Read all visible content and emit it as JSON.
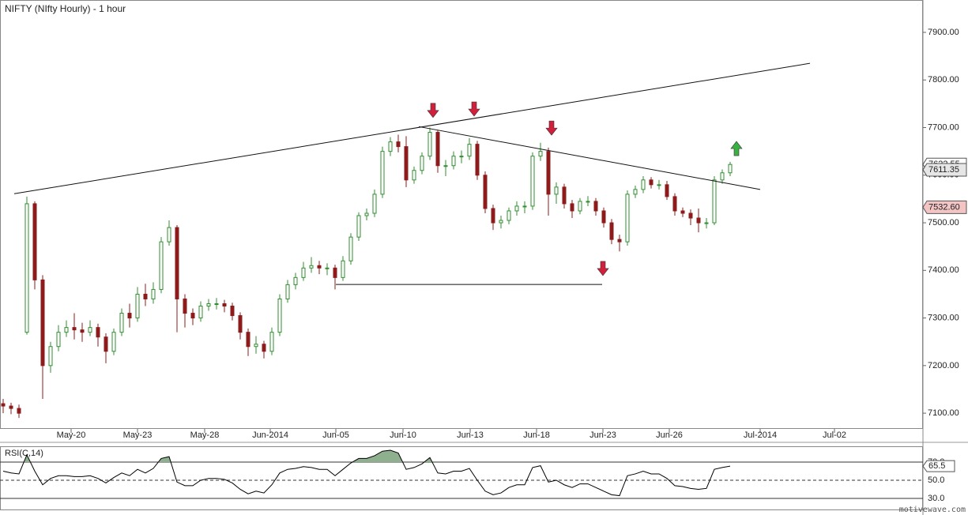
{
  "chart_data": [
    {
      "type": "candlestick",
      "title": "NIFTY (NIfty Hourly) - 1 hour",
      "open": [
        7120,
        7115,
        7110,
        7270,
        7540,
        7380,
        7200,
        7240,
        7270,
        7280,
        7275,
        7270,
        7280,
        7260,
        7230,
        7270,
        7310,
        7300,
        7350,
        7340,
        7360,
        7460,
        7490,
        7340,
        7310,
        7300,
        7325,
        7330,
        7330,
        7325,
        7305,
        7270,
        7240,
        7245,
        7230,
        7270,
        7340,
        7370,
        7385,
        7405,
        7410,
        7405,
        7405,
        7385,
        7420,
        7470,
        7515,
        7520,
        7560,
        7650,
        7670,
        7660,
        7590,
        7610,
        7640,
        7690,
        7620,
        7620,
        7640,
        7640,
        7665,
        7600,
        7530,
        7500,
        7505,
        7525,
        7535,
        7535,
        7640,
        7650,
        7560,
        7575,
        7540,
        7525,
        7545,
        7545,
        7525,
        7500,
        7465,
        7460,
        7560,
        7570,
        7590,
        7580,
        7580,
        7555,
        7525,
        7520,
        7510,
        7500,
        7500,
        7590,
        7605
      ],
      "high": [
        7130,
        7122,
        7118,
        7555,
        7545,
        7390,
        7250,
        7285,
        7295,
        7310,
        7290,
        7295,
        7288,
        7268,
        7278,
        7320,
        7330,
        7365,
        7372,
        7375,
        7470,
        7505,
        7495,
        7350,
        7320,
        7335,
        7340,
        7342,
        7338,
        7332,
        7312,
        7278,
        7262,
        7252,
        7280,
        7350,
        7380,
        7395,
        7418,
        7428,
        7420,
        7415,
        7412,
        7430,
        7478,
        7522,
        7530,
        7570,
        7660,
        7680,
        7685,
        7682,
        7618,
        7648,
        7700,
        7695,
        7632,
        7650,
        7652,
        7678,
        7672,
        7608,
        7538,
        7515,
        7532,
        7545,
        7545,
        7648,
        7668,
        7658,
        7585,
        7582,
        7548,
        7552,
        7556,
        7552,
        7532,
        7508,
        7475,
        7568,
        7578,
        7598,
        7596,
        7590,
        7588,
        7562,
        7532,
        7528,
        7530,
        7510,
        7598,
        7612,
        7628
      ],
      "low": [
        7100,
        7098,
        7090,
        7265,
        7360,
        7130,
        7185,
        7230,
        7260,
        7255,
        7250,
        7262,
        7240,
        7205,
        7222,
        7262,
        7280,
        7292,
        7325,
        7330,
        7352,
        7452,
        7270,
        7280,
        7285,
        7292,
        7315,
        7318,
        7312,
        7295,
        7255,
        7220,
        7225,
        7215,
        7222,
        7262,
        7332,
        7360,
        7378,
        7395,
        7392,
        7390,
        7360,
        7378,
        7412,
        7462,
        7505,
        7512,
        7552,
        7640,
        7648,
        7575,
        7582,
        7602,
        7632,
        7605,
        7598,
        7612,
        7625,
        7632,
        7590,
        7520,
        7485,
        7488,
        7497,
        7515,
        7520,
        7527,
        7630,
        7515,
        7540,
        7530,
        7510,
        7518,
        7535,
        7515,
        7490,
        7455,
        7440,
        7452,
        7552,
        7562,
        7572,
        7570,
        7548,
        7515,
        7512,
        7495,
        7480,
        7488,
        7495,
        7582,
        7598
      ],
      "close": [
        7115,
        7110,
        7100,
        7540,
        7380,
        7200,
        7240,
        7270,
        7280,
        7275,
        7270,
        7280,
        7260,
        7230,
        7270,
        7310,
        7300,
        7350,
        7340,
        7360,
        7460,
        7490,
        7340,
        7310,
        7300,
        7325,
        7330,
        7330,
        7325,
        7305,
        7270,
        7240,
        7245,
        7230,
        7270,
        7340,
        7370,
        7385,
        7405,
        7410,
        7405,
        7405,
        7385,
        7420,
        7470,
        7515,
        7520,
        7560,
        7650,
        7670,
        7660,
        7590,
        7610,
        7640,
        7690,
        7620,
        7620,
        7640,
        7640,
        7665,
        7600,
        7530,
        7500,
        7505,
        7525,
        7535,
        7535,
        7640,
        7650,
        7560,
        7575,
        7540,
        7525,
        7545,
        7545,
        7525,
        7500,
        7465,
        7460,
        7560,
        7570,
        7590,
        7580,
        7580,
        7555,
        7525,
        7520,
        7510,
        7500,
        7500,
        7590,
        7605,
        7622.55
      ],
      "up_color": "#2f8f2f",
      "down_color": "#8e1b1b",
      "xlim": [
        -0.4,
        116.4
      ],
      "xticks": [
        {
          "value": 8.6,
          "label": "May-20"
        },
        {
          "value": 17,
          "label": "May-23"
        },
        {
          "value": 25.5,
          "label": "May-28"
        },
        {
          "value": 33.8,
          "label": "Jun-2014"
        },
        {
          "value": 42.1,
          "label": "Jun-05"
        },
        {
          "value": 50.6,
          "label": "Jun-10"
        },
        {
          "value": 59.1,
          "label": "Jun-13"
        },
        {
          "value": 67.5,
          "label": "Jun-18"
        },
        {
          "value": 75.9,
          "label": "Jun-23"
        },
        {
          "value": 84.3,
          "label": "Jun-26"
        },
        {
          "value": 95.8,
          "label": "Jul-2014"
        },
        {
          "value": 105.2,
          "label": "Jul-02"
        }
      ],
      "ylim": [
        7067,
        7968
      ],
      "yticks": [
        {
          "value": 7100,
          "label": "7100.00"
        },
        {
          "value": 7200,
          "label": "7200.00"
        },
        {
          "value": 7300,
          "label": "7300.00"
        },
        {
          "value": 7400,
          "label": "7400.00"
        },
        {
          "value": 7500,
          "label": "7500.00"
        },
        {
          "value": 7600,
          "label": "7600.00"
        },
        {
          "value": 7700,
          "label": "7700.00"
        },
        {
          "value": 7800,
          "label": "7800.00"
        },
        {
          "value": 7900,
          "label": "7900.00"
        }
      ],
      "price_tags": [
        {
          "value": 7611.35,
          "color": "#e6e6e6"
        },
        {
          "value": 7532.6,
          "label": "7532.60",
          "color": "#f2c4c4"
        }
      ],
      "trendlines": [
        {
          "x": [
            1.4,
            102.1
          ],
          "y": [
            7561,
            7835
          ]
        },
        {
          "x": [
            52.6,
            95.8
          ],
          "y": [
            7702,
            7570
          ]
        },
        {
          "x": [
            42.1,
            75.8
          ],
          "y": [
            7370.5,
            7370.5
          ]
        }
      ],
      "arrows": [
        {
          "x": 54.4,
          "y": 7736,
          "direction": "down",
          "color": "#d21f3c"
        },
        {
          "x": 59.6,
          "y": 7739,
          "direction": "down",
          "color": "#d21f3c"
        },
        {
          "x": 69.4,
          "y": 7699,
          "direction": "down",
          "color": "#d21f3c"
        },
        {
          "x": 75.9,
          "y": 7404,
          "direction": "down",
          "color": "#d21f3c"
        },
        {
          "x": 92.8,
          "y": 7656,
          "direction": "up",
          "color": "#3cb043"
        }
      ]
    },
    {
      "type": "line",
      "title": "RSI(C,14)",
      "color": "#000000",
      "fill_color": "#8fb08f",
      "values": [
        60,
        58,
        57,
        78,
        60,
        45,
        52,
        55,
        55,
        54,
        54,
        55,
        52,
        47,
        53,
        58,
        55,
        62,
        58,
        63,
        74,
        76,
        48,
        44,
        44,
        50,
        52,
        52,
        51,
        47,
        40,
        35,
        38,
        36,
        45,
        58,
        62,
        63,
        65,
        64,
        62,
        62,
        55,
        62,
        69,
        74,
        74,
        77,
        82,
        83,
        80,
        62,
        64,
        68,
        75,
        58,
        57,
        60,
        60,
        63,
        50,
        38,
        34,
        36,
        42,
        45,
        45,
        64,
        66,
        48,
        50,
        45,
        42,
        46,
        46,
        42,
        38,
        34,
        33,
        55,
        57,
        60,
        57,
        57,
        52,
        44,
        43,
        41,
        40,
        41,
        62,
        64,
        65.5
      ],
      "xlim": [
        -0.4,
        116.4
      ],
      "ylim": [
        17.8,
        87.4
      ],
      "yticks": [
        {
          "value": 70,
          "label": "70.0"
        },
        {
          "value": 50,
          "label": "50.0"
        },
        {
          "value": 30,
          "label": "30.0"
        }
      ],
      "overbought": 70
    }
  ],
  "watermark": "motivewave.com"
}
